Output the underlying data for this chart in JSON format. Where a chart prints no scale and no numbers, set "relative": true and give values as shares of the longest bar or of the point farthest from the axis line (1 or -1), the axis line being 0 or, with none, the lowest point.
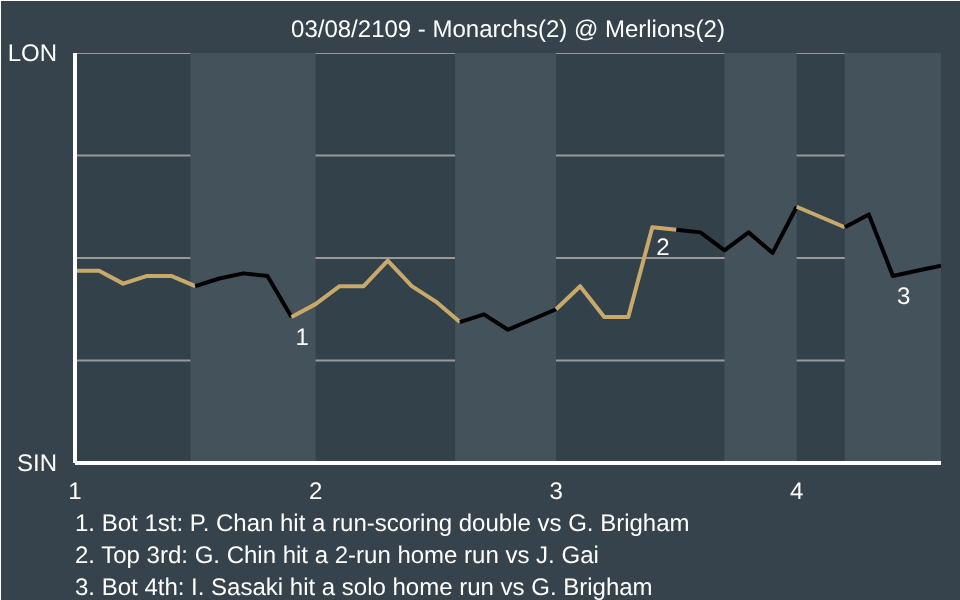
{
  "chart_data": {
    "type": "line",
    "title": "03/08/2109 - Monarchs(2) @ Merlions(2)",
    "relative": true,
    "categories": [
      "1",
      null,
      null,
      null,
      null,
      null,
      null,
      null,
      null,
      null,
      "2",
      null,
      null,
      null,
      null,
      null,
      null,
      null,
      null,
      null,
      "3",
      null,
      null,
      null,
      null,
      null,
      null,
      null,
      null,
      null,
      "4",
      null,
      null,
      null,
      null,
      null,
      null
    ],
    "series": [
      {
        "color": "#c8a96a",
        "values": [
          0.75,
          0.75,
          0.7,
          0.73,
          0.73,
          0.69,
          null,
          null,
          null,
          null,
          null,
          null,
          null,
          null,
          null,
          null,
          null,
          null,
          null,
          null,
          null,
          null,
          null,
          null,
          null,
          null,
          null,
          null,
          null,
          null,
          null,
          null,
          null,
          null,
          null,
          null,
          null
        ]
      },
      {
        "color": "#000000",
        "values": [
          null,
          null,
          null,
          null,
          null,
          0.69,
          0.72,
          0.74,
          0.73,
          0.57,
          null,
          null,
          null,
          null,
          null,
          null,
          null,
          null,
          null,
          null,
          null,
          null,
          null,
          null,
          null,
          null,
          null,
          null,
          null,
          null,
          null,
          null,
          null,
          null,
          null,
          null,
          null
        ]
      },
      {
        "color": "#c8a96a",
        "values": [
          null,
          null,
          null,
          null,
          null,
          null,
          null,
          null,
          null,
          0.57,
          0.62,
          0.69,
          0.69,
          0.79,
          0.69,
          0.63,
          0.55,
          null,
          null,
          null,
          null,
          null,
          null,
          null,
          null,
          null,
          null,
          null,
          null,
          null,
          null,
          null,
          null,
          null,
          null,
          null,
          null
        ]
      },
      {
        "color": "#000000",
        "values": [
          null,
          null,
          null,
          null,
          null,
          null,
          null,
          null,
          null,
          null,
          null,
          null,
          null,
          null,
          null,
          null,
          0.55,
          0.58,
          0.52,
          0.56,
          0.6,
          null,
          null,
          null,
          null,
          null,
          null,
          null,
          null,
          null,
          null,
          null,
          null,
          null,
          null,
          null,
          null
        ]
      },
      {
        "color": "#c8a96a",
        "values": [
          null,
          null,
          null,
          null,
          null,
          null,
          null,
          null,
          null,
          null,
          null,
          null,
          null,
          null,
          null,
          null,
          null,
          null,
          null,
          null,
          0.6,
          0.69,
          0.57,
          0.57,
          0.92,
          0.91,
          null,
          null,
          null,
          null,
          null,
          null,
          null,
          null,
          null,
          null,
          null
        ]
      },
      {
        "color": "#000000",
        "values": [
          null,
          null,
          null,
          null,
          null,
          null,
          null,
          null,
          null,
          null,
          null,
          null,
          null,
          null,
          null,
          null,
          null,
          null,
          null,
          null,
          null,
          null,
          null,
          null,
          null,
          0.91,
          0.9,
          0.83,
          0.9,
          0.82,
          1,
          null,
          null,
          null,
          null,
          null,
          null
        ]
      },
      {
        "color": "#c8a96a",
        "values": [
          null,
          null,
          null,
          null,
          null,
          null,
          null,
          null,
          null,
          null,
          null,
          null,
          null,
          null,
          null,
          null,
          null,
          null,
          null,
          null,
          null,
          null,
          null,
          null,
          null,
          null,
          null,
          null,
          null,
          null,
          1,
          0.96,
          0.92,
          null,
          null,
          null,
          null
        ]
      },
      {
        "color": "#000000",
        "values": [
          null,
          null,
          null,
          null,
          null,
          null,
          null,
          null,
          null,
          null,
          null,
          null,
          null,
          null,
          null,
          null,
          null,
          null,
          null,
          null,
          null,
          null,
          null,
          null,
          null,
          null,
          null,
          null,
          null,
          null,
          null,
          null,
          0.92,
          0.97,
          0.73,
          0.75,
          0.77
        ]
      }
    ],
    "ref_lines": [
      {
        "axis": "y",
        "value": 0.4,
        "color": "#999999"
      },
      {
        "axis": "y",
        "value": 0.8,
        "color": "#999999"
      },
      {
        "axis": "y",
        "value": 1.2,
        "color": "#999999"
      },
      {
        "axis": "y",
        "value": 1.6,
        "color": "#999999"
      }
    ],
    "annotations": [
      "LON",
      "SIN",
      {
        "text": "1",
        "y": 0.57
      },
      {
        "text": "2",
        "y": 0.92
      },
      {
        "text": "3",
        "y": 0.73
      },
      "1. Bot 1st: P. Chan hit a run-scoring double vs G. Brigham",
      "2. Top 3rd: G. Chin hit a 2-run home run vs J. Gai",
      "3. Bot 4th: I. Sasaki hit a solo home run vs G. Brigham"
    ]
  }
}
